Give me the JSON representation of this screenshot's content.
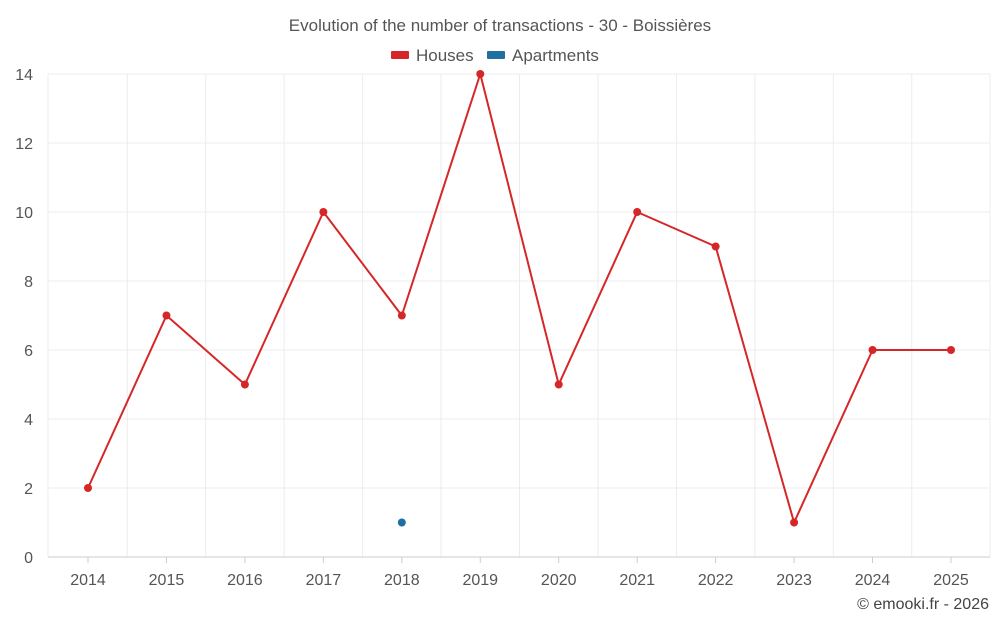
{
  "chart_data": {
    "type": "line",
    "title": "Evolution of the number of transactions - 30 - Boissières",
    "xlabel": "",
    "ylabel": "",
    "categories": [
      "2014",
      "2015",
      "2016",
      "2017",
      "2018",
      "2019",
      "2020",
      "2021",
      "2022",
      "2023",
      "2024",
      "2025"
    ],
    "series": [
      {
        "name": "Houses",
        "color": "#d62728",
        "values": [
          2,
          7,
          5,
          10,
          7,
          14,
          5,
          10,
          9,
          1,
          6,
          6
        ]
      },
      {
        "name": "Apartments",
        "color": "#1f6fa0",
        "values": [
          null,
          null,
          null,
          null,
          1,
          null,
          null,
          null,
          null,
          null,
          null,
          null
        ]
      }
    ],
    "ylim": [
      0,
      14
    ],
    "yticks": [
      0,
      2,
      4,
      6,
      8,
      10,
      12,
      14
    ],
    "grid": true,
    "legend_position": "top-center"
  },
  "credit": "© emooki.fr - 2026"
}
